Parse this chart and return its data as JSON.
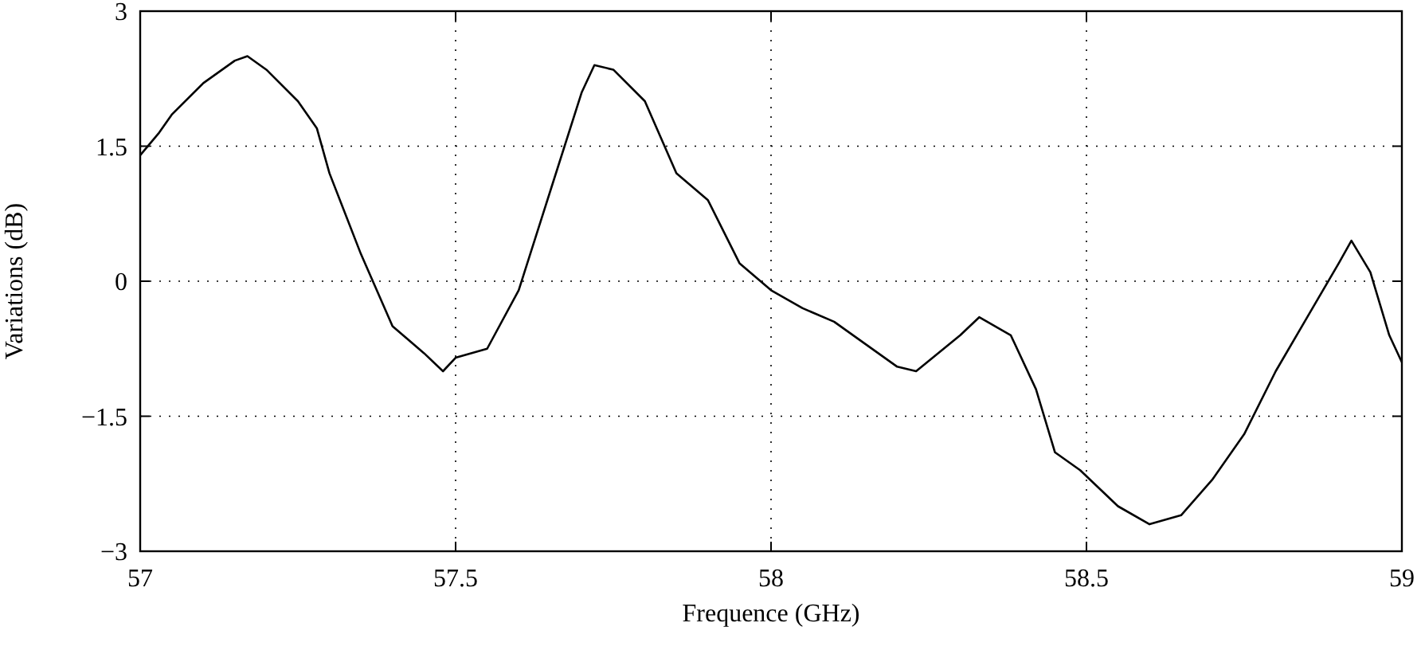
{
  "chart_data": {
    "type": "line",
    "xlabel": "Frequence (GHz)",
    "ylabel": "Variations (dB)",
    "xlim": [
      57,
      59
    ],
    "xticks": [
      57,
      57.5,
      58,
      58.5,
      59
    ],
    "ylim": [
      -3,
      3
    ],
    "yticks": [
      {
        "value": -3,
        "label": "−3"
      },
      {
        "value": -1.5,
        "label": "−1.5"
      },
      0,
      1.5,
      3
    ],
    "grid": true,
    "line_style": "solid",
    "series": [
      {
        "color": "#000000",
        "x": [
          57,
          57.03,
          57.05,
          57.1,
          57.15,
          57.17,
          57.2,
          57.25,
          57.28,
          57.3,
          57.35,
          57.4,
          57.45,
          57.48,
          57.5,
          57.55,
          57.6,
          57.65,
          57.7,
          57.72,
          57.75,
          57.8,
          57.85,
          57.9,
          57.95,
          58,
          58.05,
          58.1,
          58.15,
          58.2,
          58.23,
          58.3,
          58.33,
          58.38,
          58.42,
          58.45,
          58.49,
          58.55,
          58.6,
          58.65,
          58.7,
          58.75,
          58.8,
          58.85,
          58.9,
          58.92,
          58.95,
          58.98,
          59
        ],
        "values": [
          1.4,
          1.65,
          1.85,
          2.2,
          2.45,
          2.5,
          2.35,
          2.0,
          1.7,
          1.2,
          0.3,
          -0.5,
          -0.8,
          -1.0,
          -0.85,
          -0.75,
          -0.1,
          1.0,
          2.1,
          2.4,
          2.35,
          2.0,
          1.2,
          0.9,
          0.2,
          -0.1,
          -0.3,
          -0.45,
          -0.7,
          -0.95,
          -1.0,
          -0.6,
          -0.4,
          -0.6,
          -1.2,
          -1.9,
          -2.1,
          -2.5,
          -2.7,
          -2.6,
          -2.2,
          -1.7,
          -1.0,
          -0.4,
          0.2,
          0.45,
          0.1,
          -0.6,
          -0.9
        ]
      }
    ]
  }
}
